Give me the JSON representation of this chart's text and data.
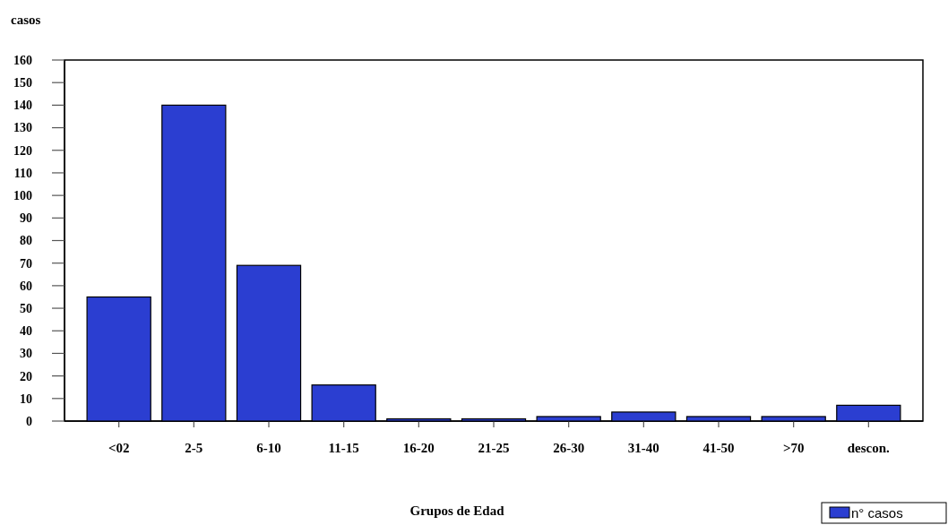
{
  "chart_data": {
    "type": "bar",
    "ylabel": "casos",
    "xlabel": "Grupos de Edad",
    "categories": [
      "<02",
      "2-5",
      "6-10",
      "11-15",
      "16-20",
      "21-25",
      "26-30",
      "31-40",
      "41-50",
      ">70",
      "descon."
    ],
    "series": [
      {
        "name": "n° casos",
        "color": "#2b3ed1",
        "values": [
          55,
          140,
          69,
          16,
          1,
          1,
          2,
          4,
          2,
          2,
          7
        ]
      }
    ],
    "ylim": [
      0,
      160
    ],
    "yticks": [
      0,
      10,
      20,
      30,
      40,
      50,
      60,
      70,
      80,
      90,
      100,
      110,
      120,
      130,
      140,
      150,
      160
    ],
    "legend": "bottom right"
  }
}
